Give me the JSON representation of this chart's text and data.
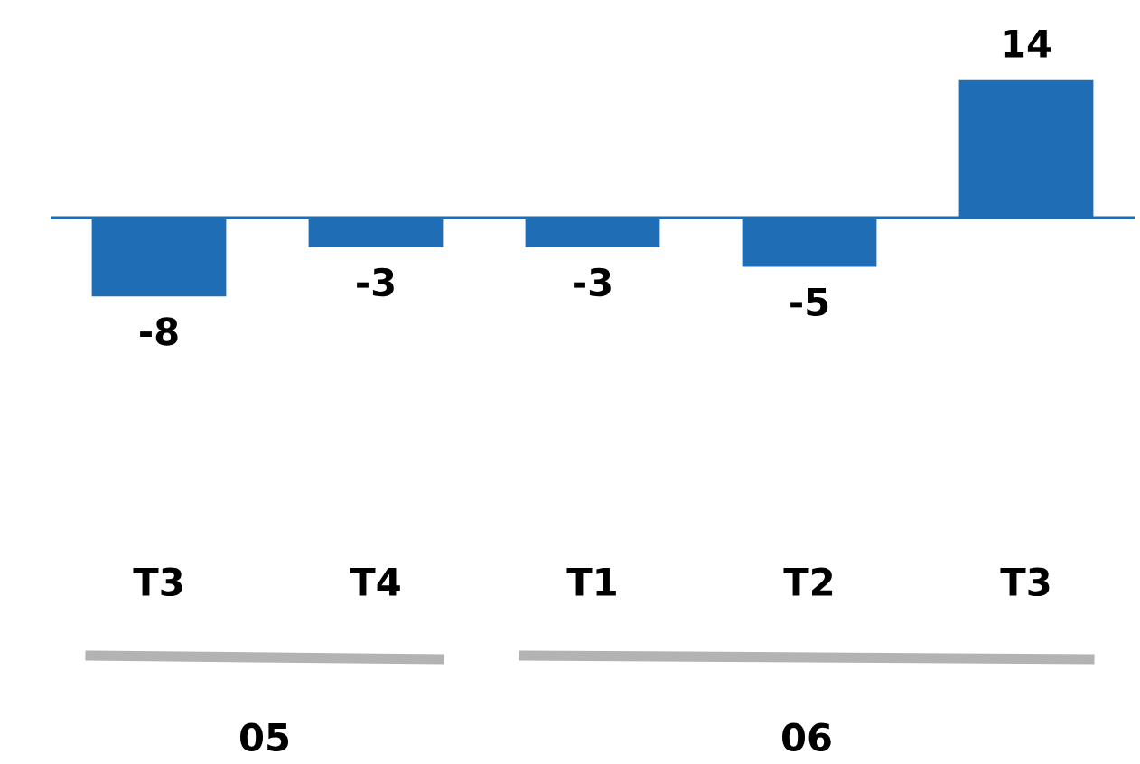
{
  "chart_data": {
    "type": "bar",
    "categories": [
      "T3",
      "T4",
      "T1",
      "T2",
      "T3"
    ],
    "values": [
      -8,
      -3,
      -3,
      -5,
      14
    ],
    "color": "#1f6db5",
    "data_labels": true,
    "grid": false,
    "legend": false,
    "ref_lines": [
      {
        "axis": "y",
        "value": 0,
        "color": "#1f6db5"
      }
    ],
    "annotations": [
      "05",
      "06"
    ]
  }
}
